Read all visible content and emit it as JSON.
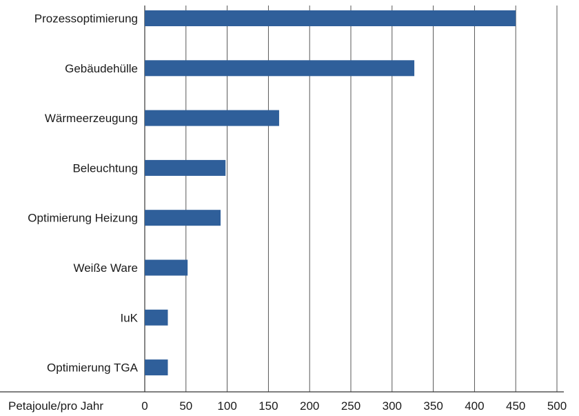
{
  "chart_data": {
    "type": "bar",
    "orientation": "horizontal",
    "categories": [
      "Prozessoptimierung",
      "Gebäudehülle",
      "Wärmeerzeugung",
      "Beleuchtung",
      "Optimierung Heizung",
      "Weiße Ware",
      "IuK",
      "Optimierung TGA"
    ],
    "values": [
      450,
      327,
      163,
      98,
      92,
      52,
      28,
      28
    ],
    "xlabel": "Petajoule/pro Jahr",
    "xlim": [
      0,
      500
    ],
    "xticks": [
      "0",
      "50",
      "100",
      "150",
      "200",
      "250",
      "300",
      "350",
      "400",
      "450",
      "500"
    ],
    "grid": "vertical",
    "bar_color": "#2f5f9a"
  }
}
